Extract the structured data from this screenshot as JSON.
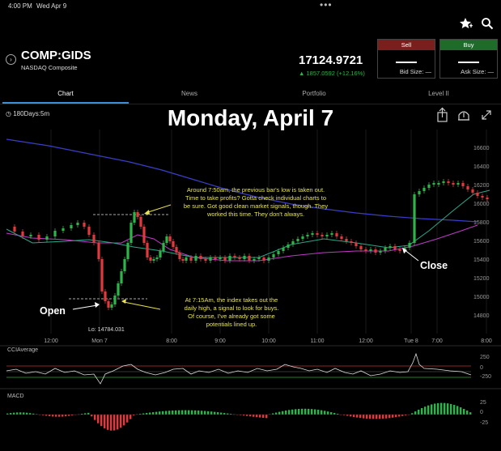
{
  "status_bar": {
    "time": "4:00 PM",
    "date": "Wed Apr 9",
    "dots": "•••"
  },
  "header_icons": [
    "watchlist-add-icon",
    "search-icon"
  ],
  "quote": {
    "symbol": "COMP:GIDS",
    "name": "NASDAQ Composite",
    "price": "17124.9721",
    "change": "▲ 1857.0592 (+12.16%)",
    "change_color": "#2fb34a"
  },
  "sell": {
    "label": "Sell",
    "size_label": "Bid Size: —",
    "color": "#7a1e1e"
  },
  "buy": {
    "label": "Buy",
    "size_label": "Ask Size: —",
    "color": "#1e6b2a"
  },
  "tabs": [
    "Chart",
    "News",
    "Portfolio",
    "Level II"
  ],
  "chart": {
    "period": "180Days:5m",
    "title": "Monday, April 7",
    "price_axis": [
      "16600",
      "16400",
      "16200",
      "16000",
      "15800",
      "15600",
      "15400",
      "15200",
      "15000",
      "14800"
    ],
    "time_axis": [
      "12:00",
      "Mon 7",
      "8:00",
      "9:00",
      "10:00",
      "11:00",
      "12:00",
      "Tue 8",
      "7:00",
      "8:00"
    ],
    "low_label": "Lo: 14784.031",
    "annotation_top": "Around 7:50am, the previous bar's low is taken out.\nTime to take profits? Gotta check individual charts to\nbe sure. Got good clean market signals, though. They\nworked this time. They don't always.",
    "annotation_bottom": "At 7:15Am, the index takes out the\ndaily high, a signal to look for buys.\nOf course, I've already got some\npotentials lined up.",
    "open_label": "Open",
    "close_label": "Close",
    "cci_label": "CCIAverage",
    "cci_axis": [
      "250",
      "0",
      "-250"
    ],
    "macd_label": "MACD",
    "macd_axis": [
      "25",
      "0",
      "-25"
    ],
    "colors": {
      "up": "#2fb34a",
      "down": "#e0393e",
      "ma_blue": "#3b3ec9",
      "ma_magenta": "#c03ac8",
      "ma_teal": "#2aa88a"
    }
  }
}
